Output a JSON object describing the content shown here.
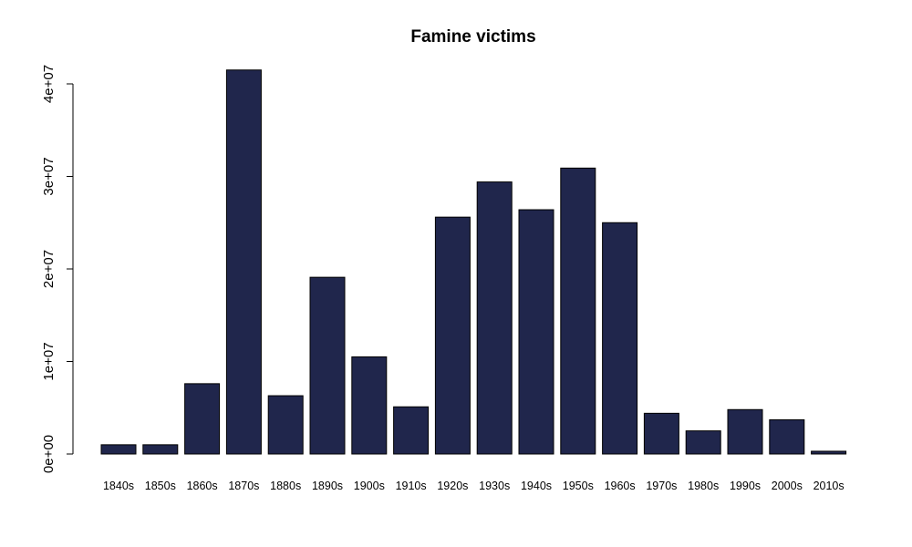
{
  "chart_data": {
    "type": "bar",
    "title": "Famine victims",
    "xlabel": "",
    "ylabel": "",
    "categories": [
      "1840s",
      "1850s",
      "1860s",
      "1870s",
      "1880s",
      "1890s",
      "1900s",
      "1910s",
      "1920s",
      "1930s",
      "1940s",
      "1950s",
      "1960s",
      "1970s",
      "1980s",
      "1990s",
      "2000s",
      "2010s"
    ],
    "values": [
      1000000,
      1000000,
      7600000,
      41500000,
      6300000,
      19100000,
      10500000,
      5100000,
      25600000,
      29400000,
      26400000,
      30900000,
      25000000,
      4400000,
      2500000,
      4800000,
      3700000,
      300000
    ],
    "ylim": [
      0,
      40000000
    ],
    "yticks": [
      0,
      10000000,
      20000000,
      30000000,
      40000000
    ],
    "ytick_labels": [
      "0e+00",
      "1e+07",
      "2e+07",
      "3e+07",
      "4e+07"
    ],
    "grid": false,
    "legend": "none",
    "colors": {
      "bar_fill": "#20264c",
      "bar_stroke": "#000000",
      "axis": "#000000"
    }
  }
}
